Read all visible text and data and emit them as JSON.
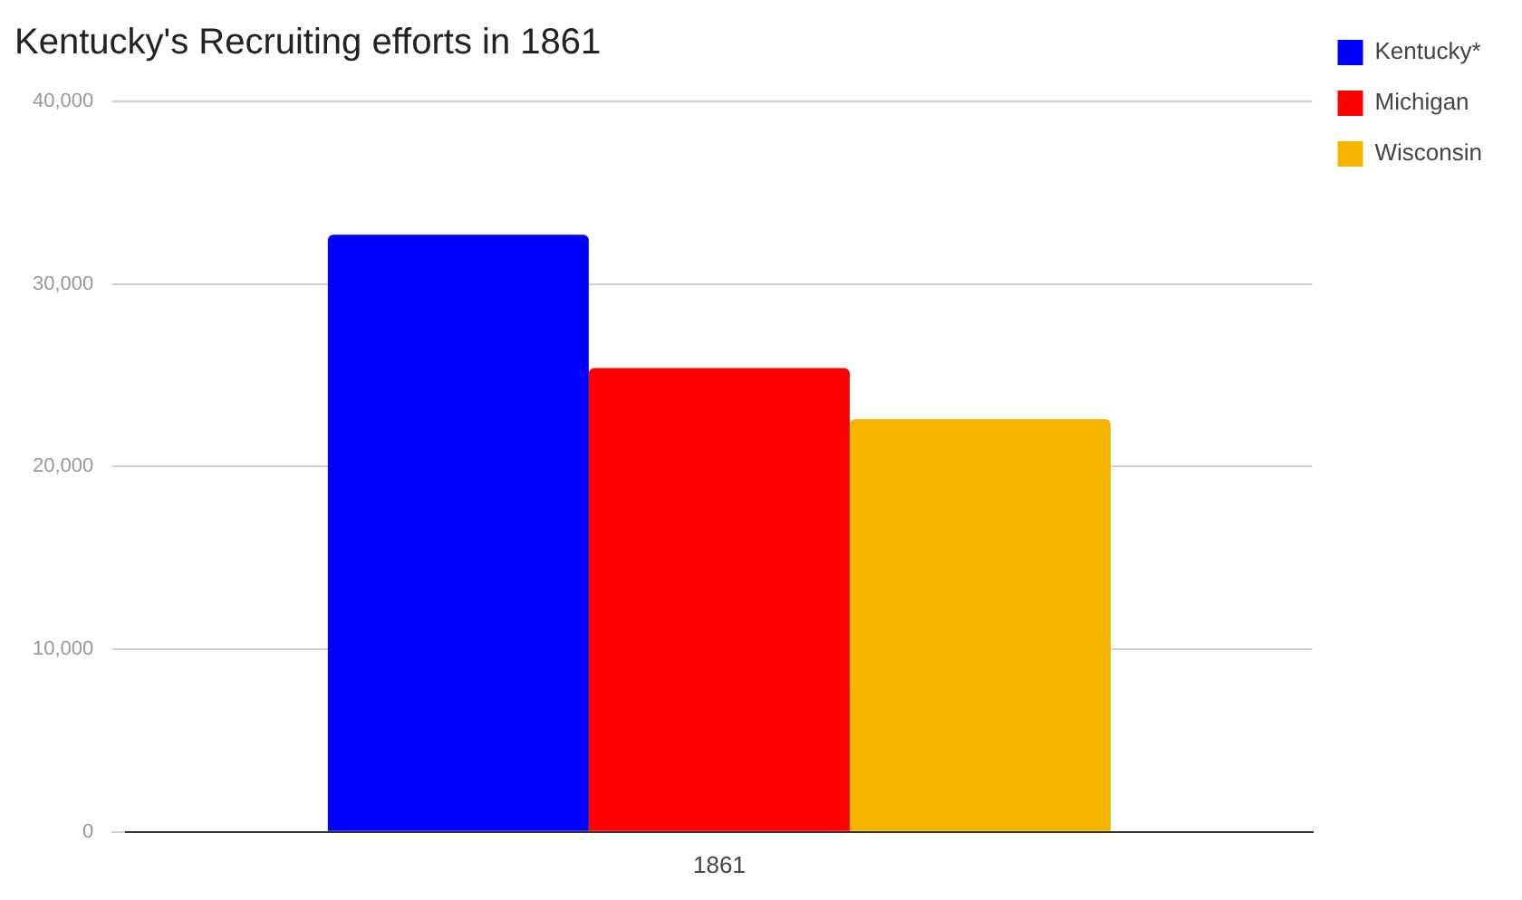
{
  "chart_data": {
    "type": "bar",
    "title": "Kentucky's Recruiting efforts in 1861",
    "categories": [
      "1861"
    ],
    "series": [
      {
        "name": "Kentucky*",
        "color": "#0000ff",
        "values": [
          32700
        ]
      },
      {
        "name": "Michigan",
        "color": "#ff0000",
        "values": [
          25400
        ]
      },
      {
        "name": "Wisconsin",
        "color": "#f4b400",
        "values": [
          22600
        ]
      }
    ],
    "ylim": [
      0,
      40000
    ],
    "yticks": [
      0,
      {
        "value": 10000,
        "label": "10,000"
      },
      {
        "value": 20000,
        "label": "20,000"
      },
      {
        "value": 30000,
        "label": "30,000"
      },
      {
        "value": 40000,
        "label": "40,000"
      }
    ],
    "grid": "y",
    "legend": "top right"
  }
}
